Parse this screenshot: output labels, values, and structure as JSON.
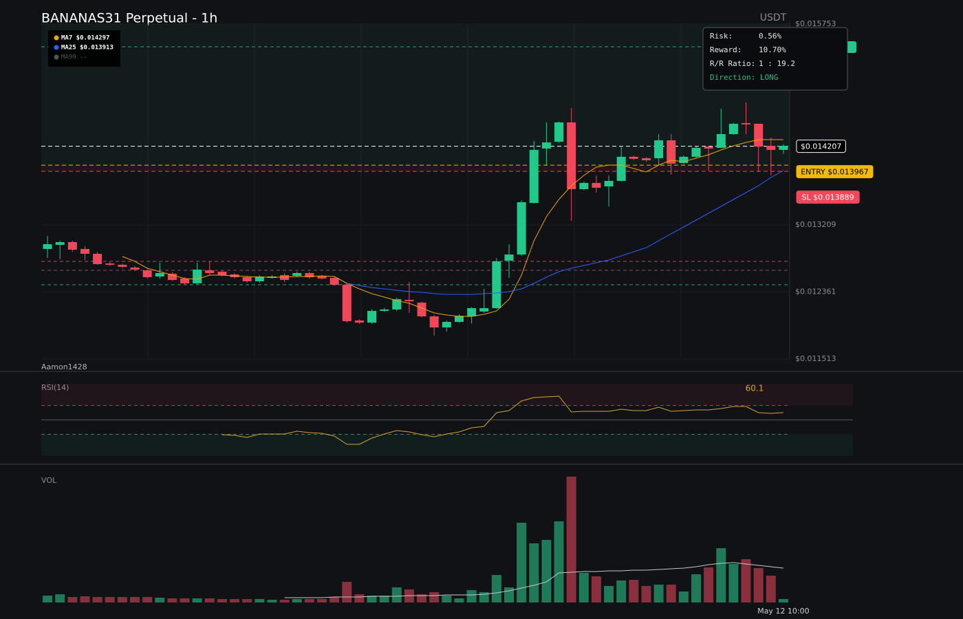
{
  "title": "BANANAS31 Perpetual - 1h",
  "currency": "USDT",
  "watermark": "Aamon1428",
  "legend_extra": {
    "text": "MA99 --",
    "color": "#555555"
  },
  "info_box": [
    [
      "Risk:",
      "0.56%"
    ],
    [
      "Reward:",
      "10.70%"
    ],
    [
      "R/R Ratio:",
      "1 : 19.2"
    ],
    [
      "Direction: LONG"
    ]
  ],
  "chart_data": [
    {
      "type": "candlestick",
      "categories": [
        null,
        null,
        null,
        null,
        null,
        null,
        null,
        null,
        null,
        null,
        null,
        null,
        null,
        null,
        null,
        null,
        null,
        null,
        null,
        null,
        null,
        null,
        null,
        null,
        null,
        null,
        null,
        null,
        null,
        null,
        null,
        null,
        null,
        null,
        null,
        null,
        null,
        null,
        null,
        null,
        null,
        null,
        null,
        null,
        null,
        null,
        null,
        null,
        null,
        null,
        null,
        null,
        null,
        null,
        null,
        null,
        null,
        null,
        null,
        "May 12 10:00"
      ],
      "open": [
        0.012906,
        0.012958,
        0.012993,
        0.012906,
        0.012845,
        0.012723,
        0.012706,
        0.012671,
        0.012636,
        0.012558,
        0.012593,
        0.012532,
        0.012471,
        0.012636,
        0.012619,
        0.012584,
        0.012549,
        0.012497,
        0.01254,
        0.012575,
        0.012566,
        0.012601,
        0.012558,
        0.01254,
        0.012453,
        0.012001,
        0.011974,
        0.012122,
        0.01214,
        0.012262,
        0.012227,
        0.012053,
        0.011913,
        0.011983,
        0.012053,
        0.012114,
        0.012157,
        0.012758,
        0.012836,
        0.013489,
        0.014177,
        0.014264,
        0.014508,
        0.013663,
        0.013742,
        0.013698,
        0.013768,
        0.014073,
        0.014055,
        0.014055,
        0.014282,
        0.013994,
        0.014073,
        0.014203,
        0.014186,
        0.01436,
        0.014499,
        0.014491,
        0.014212,
        0.01416
      ],
      "high": [
        0.013071,
        0.013011,
        0.013011,
        0.012941,
        0.01287,
        0.01274,
        0.01272,
        0.01269,
        0.01265,
        0.012732,
        0.01261,
        0.01255,
        0.012732,
        0.012749,
        0.01264,
        0.0126,
        0.012565,
        0.012575,
        0.012575,
        0.0126,
        0.01262,
        0.01262,
        0.012575,
        0.01256,
        0.01247,
        0.012015,
        0.01214,
        0.01216,
        0.01229,
        0.012488,
        0.01224,
        0.01207,
        0.012,
        0.01208,
        0.01217,
        0.012401,
        0.01279,
        0.012967,
        0.01352,
        0.014273,
        0.014508,
        0.01452,
        0.014691,
        0.01376,
        0.013838,
        0.013838,
        0.014212,
        0.01409,
        0.01407,
        0.01436,
        0.01436,
        0.01409,
        0.0142,
        0.01421,
        0.014682,
        0.0145,
        0.014761,
        0.014491,
        0.014316,
        0.01423
      ],
      "low": [
        0.012793,
        0.012775,
        0.012871,
        0.012767,
        0.012705,
        0.01269,
        0.012665,
        0.01263,
        0.01253,
        0.012532,
        0.0125,
        0.012453,
        0.012453,
        0.012575,
        0.01256,
        0.01253,
        0.01248,
        0.01248,
        0.01253,
        0.012488,
        0.01255,
        0.01253,
        0.01252,
        0.01244,
        0.011974,
        0.01196,
        0.01196,
        0.01211,
        0.01212,
        0.012096,
        0.01204,
        0.011809,
        0.01186,
        0.01197,
        0.01196,
        0.012096,
        0.01215,
        0.01254,
        0.01282,
        0.01348,
        0.013968,
        0.01425,
        0.013263,
        0.01365,
        0.01362,
        0.013446,
        0.01376,
        0.01403,
        0.01401,
        0.013968,
        0.013846,
        0.01398,
        0.01406,
        0.013899,
        0.01418,
        0.01435,
        0.01436,
        0.013881,
        0.013838,
        0.01411
      ],
      "close": [
        0.012967,
        0.012993,
        0.012897,
        0.012845,
        0.012714,
        0.012706,
        0.01268,
        0.012645,
        0.012549,
        0.012601,
        0.012514,
        0.012471,
        0.012645,
        0.012601,
        0.012575,
        0.012549,
        0.012497,
        0.012558,
        0.012558,
        0.012514,
        0.012601,
        0.012549,
        0.012532,
        0.012453,
        0.011992,
        0.011974,
        0.012122,
        0.01214,
        0.01227,
        0.012244,
        0.012053,
        0.011913,
        0.011983,
        0.012061,
        0.012157,
        0.012157,
        0.01275,
        0.012836,
        0.013498,
        0.01416,
        0.014255,
        0.014508,
        0.013663,
        0.013742,
        0.013681,
        0.013768,
        0.014073,
        0.014047,
        0.014029,
        0.014282,
        0.013986,
        0.014073,
        0.014186,
        0.014177,
        0.01436,
        0.014491,
        0.014482,
        0.014203,
        0.01416,
        0.014212
      ],
      "up_color": "#22c98a",
      "down_color": "#f0475b",
      "ylim": [
        0.011513,
        0.015753
      ],
      "yticks": [
        {
          "value": 0.011513,
          "label": "$0.011513"
        },
        {
          "value": 0.012361,
          "label": "$0.012361"
        },
        {
          "value": 0.013209,
          "label": "$0.013209"
        },
        {
          "value": 0.015753,
          "label": "$0.015753"
        }
      ],
      "series": [
        {
          "name": "MA7 $0.014297",
          "color": "#f0a500",
          "values": [
            null,
            null,
            null,
            null,
            null,
            null,
            0.01281,
            0.012749,
            0.012662,
            0.012619,
            0.012575,
            0.012532,
            0.012523,
            0.012575,
            0.012575,
            0.012566,
            0.012558,
            0.012549,
            0.012549,
            0.012549,
            0.012558,
            0.012558,
            0.012566,
            0.012558,
            0.012471,
            0.012401,
            0.01234,
            0.012297,
            0.012253,
            0.012218,
            0.012157,
            0.012096,
            0.01207,
            0.012053,
            0.012053,
            0.012079,
            0.012122,
            0.01227,
            0.012575,
            0.013011,
            0.013315,
            0.013533,
            0.013707,
            0.013838,
            0.013942,
            0.013968,
            0.013968,
            0.013925,
            0.013881,
            0.013968,
            0.014029,
            0.014012,
            0.014055,
            0.014099,
            0.01416,
            0.014212,
            0.014255,
            0.01429,
            0.01429,
            0.01429
          ]
        },
        {
          "name": "MA25 $0.013913",
          "color": "#2962ff",
          "values": [
            null,
            null,
            null,
            null,
            null,
            null,
            null,
            null,
            null,
            null,
            null,
            null,
            null,
            null,
            null,
            null,
            null,
            null,
            null,
            null,
            null,
            null,
            null,
            null,
            0.012471,
            0.012445,
            0.012418,
            0.012401,
            0.012384,
            0.012366,
            0.012358,
            0.01234,
            0.012331,
            0.012331,
            0.012331,
            0.01234,
            0.012349,
            0.012366,
            0.012401,
            0.012471,
            0.012549,
            0.012619,
            0.012662,
            0.012697,
            0.012732,
            0.012767,
            0.012819,
            0.012871,
            0.012923,
            0.013011,
            0.013098,
            0.013185,
            0.013272,
            0.013359,
            0.013446,
            0.013533,
            0.01362,
            0.013707,
            0.013811,
            0.013899
          ]
        }
      ],
      "levels": [
        {
          "value": 0.015466,
          "color": "#26a17b"
        },
        {
          "value": 0.012749,
          "color": "#c2455a"
        },
        {
          "value": 0.012636,
          "color": "#8a4a6a"
        },
        {
          "value": 0.012453,
          "color": "#26a17b"
        }
      ],
      "price_labels": [
        {
          "value": 0.014207,
          "label": "$0.014207",
          "color": "#ffffff",
          "bg": "#000000",
          "text_color": "#ffffff"
        },
        {
          "value": 0.013967,
          "label": "ENTRY $0.013967",
          "color": "#f0b90b",
          "bg": "#f0b90b",
          "text_color": "#000000"
        },
        {
          "value": 0.013889,
          "label": "SL $0.013889",
          "color": "#f0475b",
          "bg": "#f0475b",
          "text_color": "#ffffff"
        }
      ]
    },
    {
      "type": "line",
      "title": "RSI(14)",
      "color": "#d4a82a",
      "values": [
        null,
        null,
        null,
        null,
        null,
        null,
        null,
        null,
        null,
        null,
        null,
        null,
        null,
        null,
        29.5,
        28.6,
        25.7,
        30.5,
        30.5,
        30.5,
        34.3,
        32.4,
        31.4,
        27.6,
        16.2,
        16.2,
        24.8,
        30.5,
        35.2,
        33.3,
        29.5,
        26.7,
        30.5,
        33.3,
        39,
        41,
        60,
        62.9,
        76.2,
        81,
        81.9,
        82.9,
        61,
        61.9,
        61.9,
        61.9,
        64.8,
        62.9,
        62.9,
        67.6,
        61.9,
        62.9,
        63.8,
        63.8,
        65.7,
        68.6,
        68.6,
        60,
        59,
        60.1
      ],
      "ylim": [
        0,
        100
      ],
      "levels": [
        70,
        50,
        30
      ],
      "level_colors": [
        "#a84455",
        "#555a60",
        "#2e8b6a"
      ]
    },
    {
      "type": "bar",
      "title": "VOL",
      "up_color": "#1e7a58",
      "down_color": "#8a2f3d",
      "values": [
        10,
        12,
        8,
        9,
        8,
        8,
        8,
        8,
        8,
        7,
        6,
        6,
        6,
        6,
        5,
        5,
        5,
        5,
        4,
        4,
        5,
        5,
        5,
        8,
        30,
        12,
        10,
        10,
        22,
        19,
        12,
        15,
        10,
        6,
        18,
        15,
        40,
        22,
        116,
        86,
        91,
        118,
        183,
        43,
        38,
        24,
        32,
        33,
        24,
        26,
        26,
        16,
        41,
        51,
        79,
        56,
        63,
        50,
        39,
        5
      ],
      "ma_values": [
        null,
        null,
        null,
        null,
        null,
        null,
        null,
        null,
        null,
        null,
        null,
        null,
        null,
        null,
        null,
        null,
        null,
        null,
        null,
        7,
        7,
        7,
        7,
        8,
        8,
        8,
        9,
        9,
        9,
        10,
        10,
        10,
        11,
        11,
        11,
        12,
        14,
        17,
        21,
        25,
        30,
        43,
        44,
        45,
        45,
        46,
        46,
        47,
        47,
        48,
        49,
        50,
        52,
        55,
        57,
        58,
        56,
        54,
        52,
        50
      ],
      "ma_color": "#c8c8c8",
      "ylim": [
        0,
        190
      ]
    }
  ]
}
